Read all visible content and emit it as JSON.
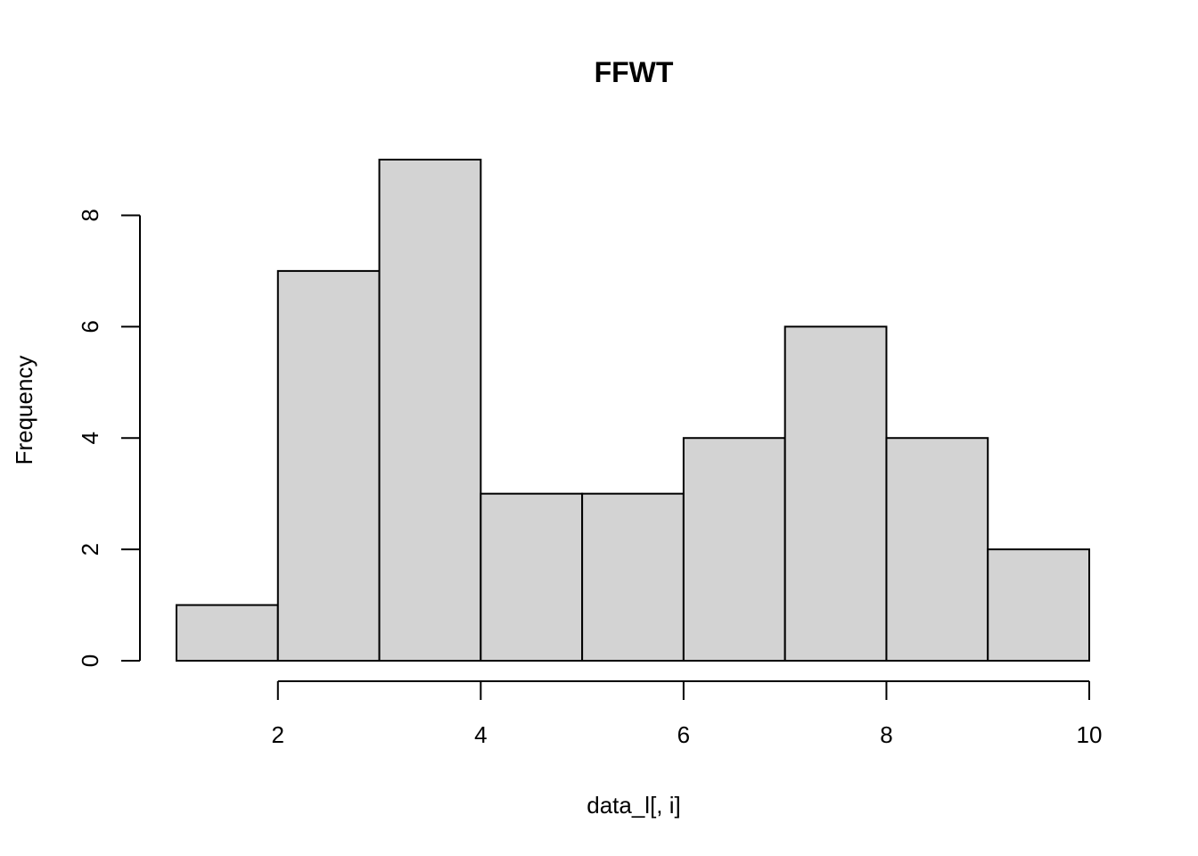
{
  "chart_data": {
    "type": "bar",
    "subtype": "histogram",
    "title": "FFWT",
    "xlabel": "data_l[, i]",
    "ylabel": "Frequency",
    "bins": [
      {
        "x0": 1,
        "x1": 2,
        "count": 1
      },
      {
        "x0": 2,
        "x1": 3,
        "count": 7
      },
      {
        "x0": 3,
        "x1": 4,
        "count": 9
      },
      {
        "x0": 4,
        "x1": 5,
        "count": 3
      },
      {
        "x0": 5,
        "x1": 6,
        "count": 3
      },
      {
        "x0": 6,
        "x1": 7,
        "count": 4
      },
      {
        "x0": 7,
        "x1": 8,
        "count": 6
      },
      {
        "x0": 8,
        "x1": 9,
        "count": 4
      },
      {
        "x0": 9,
        "x1": 10,
        "count": 2
      }
    ],
    "xlim": [
      1,
      10
    ],
    "ylim": [
      0,
      9
    ],
    "x_ticks": [
      2,
      4,
      6,
      8,
      10
    ],
    "y_ticks": [
      0,
      2,
      4,
      6,
      8
    ],
    "bar_fill": "#d3d3d3",
    "bar_stroke": "#000000",
    "grid": false,
    "legend": "none"
  }
}
